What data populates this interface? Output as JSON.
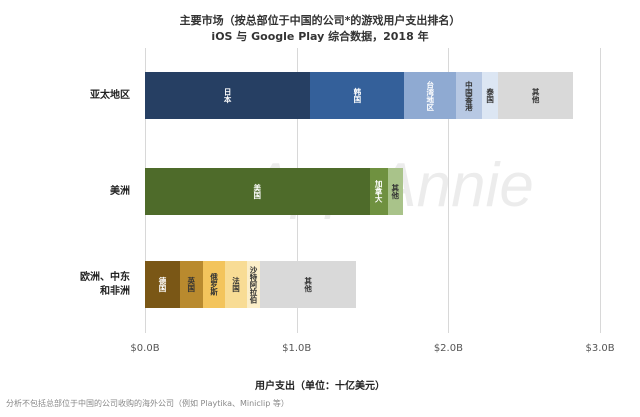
{
  "chart_data": {
    "type": "bar",
    "orientation": "horizontal",
    "stacked": true,
    "title": "主要市场（按总部位于中国的公司*的游戏用户支出排名）",
    "subtitle": "iOS 与 Google Play 综合数据，2018 年",
    "xlabel": "用户支出（单位：十亿美元）",
    "xlim": [
      0,
      3.0
    ],
    "xticks": [
      "$0.0B",
      "$1.0B",
      "$2.0B",
      "$3.0B"
    ],
    "xtick_values": [
      0,
      1,
      2,
      3
    ],
    "grid": true,
    "categories": [
      {
        "name": "亚太地区",
        "segments": [
          {
            "label": "日本",
            "value": 1.09,
            "color": "#263f63",
            "text_color": "#ffffff"
          },
          {
            "label": "韩国",
            "value": 0.62,
            "color": "#34609a",
            "text_color": "#ffffff"
          },
          {
            "label": "台湾地区",
            "value": 0.34,
            "color": "#8faad2",
            "text_color": "#ffffff"
          },
          {
            "label": "中国香港",
            "value": 0.17,
            "color": "#b7c8e3",
            "text_color": "#333333"
          },
          {
            "label": "泰国",
            "value": 0.11,
            "color": "#dce6f3",
            "text_color": "#333333"
          },
          {
            "label": "其他",
            "value": 0.49,
            "color": "#d9d9d9",
            "text_color": "#333333"
          }
        ]
      },
      {
        "name": "美洲",
        "segments": [
          {
            "label": "美国",
            "value": 1.48,
            "color": "#4e6b2a",
            "text_color": "#ffffff"
          },
          {
            "label": "加拿大",
            "value": 0.12,
            "color": "#6f9140",
            "text_color": "#ffffff"
          },
          {
            "label": "其他",
            "value": 0.1,
            "color": "#a9c38a",
            "text_color": "#333333"
          }
        ]
      },
      {
        "name": "欧洲、中东和非洲",
        "segments": [
          {
            "label": "德国",
            "value": 0.23,
            "color": "#7a5716",
            "text_color": "#ffffff"
          },
          {
            "label": "英国",
            "value": 0.15,
            "color": "#b98a2e",
            "text_color": "#333333"
          },
          {
            "label": "俄罗斯",
            "value": 0.15,
            "color": "#f3c45c",
            "text_color": "#333333"
          },
          {
            "label": "法国",
            "value": 0.14,
            "color": "#f8dc95",
            "text_color": "#333333"
          },
          {
            "label": "沙特阿拉伯",
            "value": 0.09,
            "color": "#fbeec9",
            "text_color": "#333333"
          },
          {
            "label": "其他",
            "value": 0.63,
            "color": "#d9d9d9",
            "text_color": "#333333"
          }
        ]
      }
    ]
  },
  "category_labels": [
    "亚太地区",
    "美洲",
    "欧洲、中东\n和非洲"
  ],
  "watermark": "App Annie",
  "footnote": "分析不包括总部位于中国的公司收购的海外公司（例如 Playtika、Miniclip 等）"
}
